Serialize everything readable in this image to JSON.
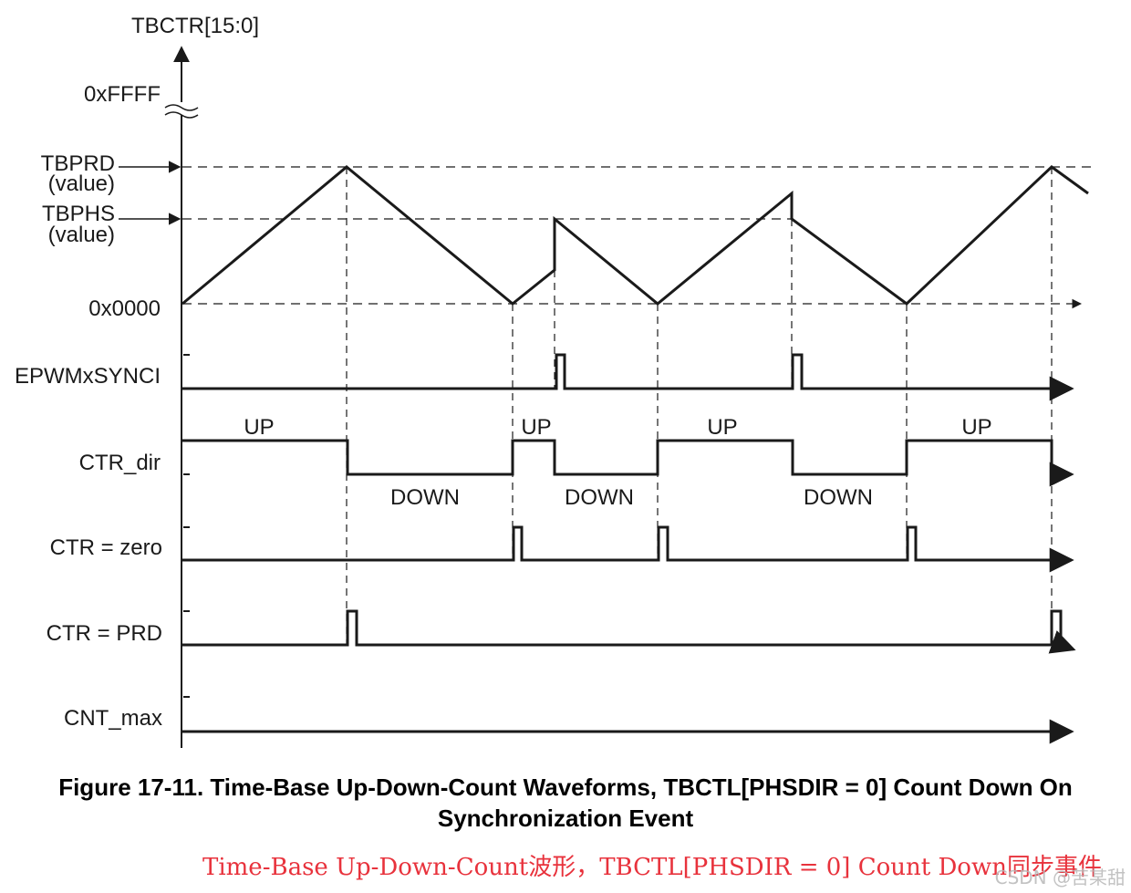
{
  "diagram": {
    "y_axis_label": "TBCTR[15:0]",
    "level_labels": {
      "max": "0xFFFF",
      "tbprd": "TBPRD",
      "tbprd_sub": "(value)",
      "tbphs": "TBPHS",
      "tbphs_sub": "(value)",
      "zero": "0x0000"
    },
    "signal_labels": {
      "sync": "EPWMxSYNCI",
      "dir": "CTR_dir",
      "zero": "CTR = zero",
      "prd": "CTR = PRD",
      "max": "CNT_max"
    },
    "direction_labels": {
      "up1": "UP",
      "down1": "DOWN",
      "up2": "UP",
      "down2": "DOWN",
      "up3": "UP",
      "down3": "DOWN",
      "up4": "UP"
    },
    "colors": {
      "line": "#1a1a1a",
      "caption_cn": "#e8323c"
    }
  },
  "caption": {
    "line1": "Figure 17-11. Time-Base Up-Down-Count Waveforms, TBCTL[PHSDIR = 0] Count Down On",
    "line2": "Synchronization Event"
  },
  "caption_cn": "Time-Base Up-Down-Count波形，TBCTL[PHSDIR = 0] Count Down同步事件",
  "watermark": "CSDN @苦某甜"
}
